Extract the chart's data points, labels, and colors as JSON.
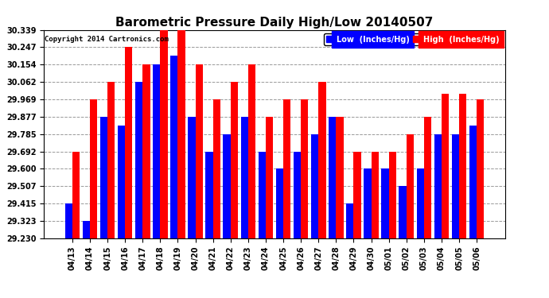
{
  "title": "Barometric Pressure Daily High/Low 20140507",
  "copyright": "Copyright 2014 Cartronics.com",
  "ylim": [
    29.23,
    30.339
  ],
  "yticks": [
    29.23,
    29.323,
    29.415,
    29.507,
    29.6,
    29.692,
    29.785,
    29.877,
    29.969,
    30.062,
    30.154,
    30.247,
    30.339
  ],
  "categories": [
    "04/13",
    "04/14",
    "04/15",
    "04/16",
    "04/17",
    "04/18",
    "04/19",
    "04/20",
    "04/21",
    "04/22",
    "04/23",
    "04/24",
    "04/25",
    "04/26",
    "04/27",
    "04/28",
    "04/29",
    "04/30",
    "05/01",
    "05/02",
    "05/03",
    "05/04",
    "05/05",
    "05/06"
  ],
  "low_values": [
    29.415,
    29.323,
    29.877,
    29.831,
    30.062,
    30.154,
    30.2,
    29.877,
    29.692,
    29.785,
    29.877,
    29.692,
    29.6,
    29.692,
    29.785,
    29.877,
    29.415,
    29.6,
    29.6,
    29.507,
    29.6,
    29.785,
    29.785,
    29.831
  ],
  "high_values": [
    29.692,
    29.969,
    30.062,
    30.247,
    30.154,
    30.339,
    30.339,
    30.154,
    29.969,
    30.062,
    30.154,
    29.877,
    29.969,
    29.969,
    30.062,
    29.877,
    29.692,
    29.692,
    29.692,
    29.785,
    29.877,
    30.0,
    30.0,
    29.969
  ],
  "low_color": "#0000ff",
  "high_color": "#ff0000",
  "bg_color": "#ffffff",
  "grid_color": "#999999",
  "bar_width": 0.42,
  "legend_low": "Low  (Inches/Hg)",
  "legend_high": "High  (Inches/Hg)",
  "title_fontsize": 11,
  "tick_fontsize": 7,
  "copyright_fontsize": 6.5,
  "legend_fontsize": 7
}
